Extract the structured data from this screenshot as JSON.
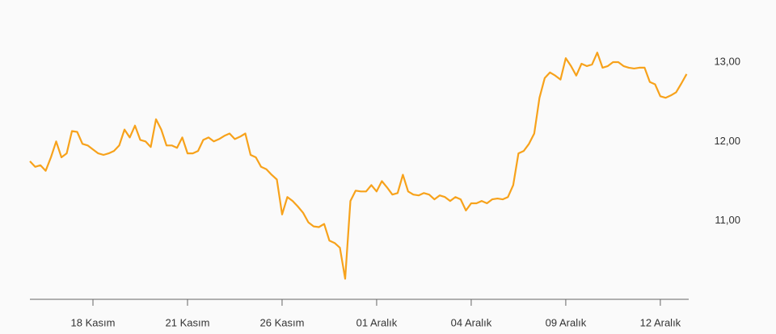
{
  "chart_data": {
    "type": "line",
    "color": "#f7a21b",
    "categories": [
      null,
      null,
      null,
      null,
      null,
      null,
      null,
      null,
      null,
      null,
      null,
      null,
      "18 Kasım",
      null,
      null,
      null,
      null,
      null,
      null,
      null,
      null,
      null,
      null,
      null,
      null,
      null,
      null,
      null,
      null,
      null,
      "21 Kasım",
      null,
      null,
      null,
      null,
      null,
      null,
      null,
      null,
      null,
      null,
      null,
      null,
      null,
      null,
      null,
      null,
      null,
      "26 Kasım",
      null,
      null,
      null,
      null,
      null,
      null,
      null,
      null,
      null,
      null,
      null,
      null,
      null,
      null,
      null,
      null,
      null,
      "01 Aralık",
      null,
      null,
      null,
      null,
      null,
      null,
      null,
      null,
      null,
      null,
      null,
      null,
      null,
      null,
      null,
      null,
      null,
      "04 Aralık",
      null,
      null,
      null,
      null,
      null,
      null,
      null,
      null,
      null,
      null,
      null,
      null,
      null,
      null,
      null,
      null,
      null,
      "09 Aralık",
      null,
      null,
      null,
      null,
      null,
      null,
      null,
      null,
      null,
      null,
      null,
      null,
      null,
      null,
      null,
      null,
      null,
      "12 Aralık",
      null,
      null,
      null,
      null,
      null
    ],
    "values": [
      11.75,
      11.68,
      11.7,
      11.63,
      11.8,
      12.0,
      11.8,
      11.85,
      12.13,
      12.12,
      11.97,
      11.95,
      11.9,
      11.85,
      11.83,
      11.85,
      11.88,
      11.95,
      12.15,
      12.05,
      12.2,
      12.02,
      12.0,
      11.93,
      12.28,
      12.15,
      11.95,
      11.95,
      11.92,
      12.05,
      11.85,
      11.85,
      11.88,
      12.02,
      12.05,
      12.0,
      12.03,
      12.07,
      12.1,
      12.03,
      12.06,
      12.1,
      11.83,
      11.8,
      11.68,
      11.65,
      11.58,
      11.52,
      11.08,
      11.3,
      11.25,
      11.18,
      11.1,
      10.98,
      10.93,
      10.92,
      10.96,
      10.75,
      10.72,
      10.66,
      10.27,
      11.25,
      11.38,
      11.37,
      11.37,
      11.45,
      11.37,
      11.5,
      11.42,
      11.33,
      11.35,
      11.58,
      11.37,
      11.33,
      11.32,
      11.35,
      11.33,
      11.27,
      11.32,
      11.3,
      11.25,
      11.3,
      11.27,
      11.13,
      11.22,
      11.22,
      11.25,
      11.22,
      11.27,
      11.28,
      11.27,
      11.3,
      11.45,
      11.85,
      11.88,
      11.97,
      12.1,
      12.55,
      12.8,
      12.87,
      12.83,
      12.78,
      13.05,
      12.95,
      12.83,
      12.98,
      12.95,
      12.97,
      13.12,
      12.93,
      12.95,
      13.0,
      13.0,
      12.95,
      12.93,
      12.92,
      12.93,
      12.93,
      12.75,
      12.72,
      12.57,
      12.55,
      12.58,
      12.62,
      12.73,
      12.85
    ],
    "ylim": [
      10,
      13.6
    ],
    "yticks": [
      {
        "value": 11,
        "label": "11,00"
      },
      {
        "value": 12,
        "label": "12,00"
      },
      {
        "value": 13,
        "label": "13,00"
      }
    ]
  }
}
